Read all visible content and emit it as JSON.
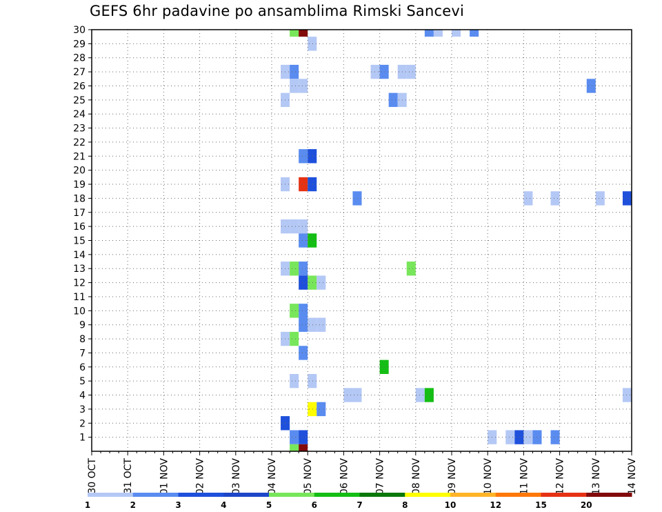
{
  "chart_data": {
    "type": "heatmap",
    "title": "GEFS 6hr padavine po ansamblima Rimski Sancevi",
    "xlabel": "",
    "ylabel": "",
    "x_tick_labels": [
      "30 OCT",
      "31 OCT",
      "01 NOV",
      "02 NOV",
      "03 NOV",
      "04 NOV",
      "05 NOV",
      "06 NOV",
      "07 NOV",
      "08 NOV",
      "09 NOV",
      "10 NOV",
      "11 NOV",
      "12 NOV",
      "13 NOV",
      "14 NOV"
    ],
    "y_tick_labels": [
      "1",
      "2",
      "3",
      "4",
      "5",
      "6",
      "7",
      "8",
      "9",
      "10",
      "11",
      "12",
      "13",
      "14",
      "15",
      "16",
      "17",
      "18",
      "19",
      "20",
      "21",
      "22",
      "23",
      "24",
      "25",
      "26",
      "27",
      "28",
      "29",
      "30"
    ],
    "x_unit": "6-hour steps from 30 OCT 00Z",
    "x_range": [
      0,
      60
    ],
    "y_range": [
      0,
      30
    ],
    "grid": true,
    "legend_placement": "bottom",
    "colorbar": {
      "labels": [
        "1",
        "2",
        "3",
        "4",
        "5",
        "6",
        "7",
        "8",
        "10",
        "12",
        "15",
        "20"
      ],
      "colors": [
        "#b4c8f5",
        "#5a8cf0",
        "#1e50dc",
        "#1e46c8",
        "#78e65a",
        "#14be14",
        "#0a780a",
        "#ffff00",
        "#ffb428",
        "#ff780a",
        "#e63214",
        "#820a0a"
      ]
    },
    "cells": [
      {
        "member": 30,
        "step": 22,
        "value": 5.5
      },
      {
        "member": 30,
        "step": 23,
        "value": 25
      },
      {
        "member": 30,
        "step": 37,
        "value": 2.5
      },
      {
        "member": 30,
        "step": 38,
        "value": 1.5
      },
      {
        "member": 30,
        "step": 40,
        "value": 1.5
      },
      {
        "member": 30,
        "step": 42,
        "value": 2.5
      },
      {
        "member": 29,
        "step": 24,
        "value": 1.5
      },
      {
        "member": 27,
        "step": 21,
        "value": 1.5
      },
      {
        "member": 27,
        "step": 22,
        "value": 2.5
      },
      {
        "member": 27,
        "step": 31,
        "value": 1.5
      },
      {
        "member": 27,
        "step": 32,
        "value": 2.5
      },
      {
        "member": 27,
        "step": 34,
        "value": 1.5
      },
      {
        "member": 27,
        "step": 35,
        "value": 1.5
      },
      {
        "member": 26,
        "step": 22,
        "value": 1.5
      },
      {
        "member": 26,
        "step": 23,
        "value": 1.5
      },
      {
        "member": 26,
        "step": 55,
        "value": 2.5
      },
      {
        "member": 25,
        "step": 21,
        "value": 1.5
      },
      {
        "member": 25,
        "step": 33,
        "value": 2.5
      },
      {
        "member": 25,
        "step": 34,
        "value": 1.5
      },
      {
        "member": 21,
        "step": 23,
        "value": 2.5
      },
      {
        "member": 21,
        "step": 24,
        "value": 3.5
      },
      {
        "member": 19,
        "step": 21,
        "value": 1.5
      },
      {
        "member": 19,
        "step": 23,
        "value": 15
      },
      {
        "member": 19,
        "step": 24,
        "value": 3.5
      },
      {
        "member": 18,
        "step": 29,
        "value": 2.5
      },
      {
        "member": 18,
        "step": 48,
        "value": 1.5
      },
      {
        "member": 18,
        "step": 51,
        "value": 1.5
      },
      {
        "member": 18,
        "step": 56,
        "value": 1.5
      },
      {
        "member": 18,
        "step": 59,
        "value": 3.5
      },
      {
        "member": 16,
        "step": 21,
        "value": 1.5
      },
      {
        "member": 16,
        "step": 22,
        "value": 1.5
      },
      {
        "member": 16,
        "step": 23,
        "value": 1.5
      },
      {
        "member": 15,
        "step": 23,
        "value": 2.5
      },
      {
        "member": 15,
        "step": 24,
        "value": 6.5
      },
      {
        "member": 13,
        "step": 21,
        "value": 1.5
      },
      {
        "member": 13,
        "step": 22,
        "value": 5.5
      },
      {
        "member": 13,
        "step": 23,
        "value": 2.5
      },
      {
        "member": 13,
        "step": 35,
        "value": 5.5
      },
      {
        "member": 12,
        "step": 23,
        "value": 3.5
      },
      {
        "member": 12,
        "step": 24,
        "value": 5.5
      },
      {
        "member": 12,
        "step": 25,
        "value": 1.5
      },
      {
        "member": 10,
        "step": 22,
        "value": 5.5
      },
      {
        "member": 10,
        "step": 23,
        "value": 2.5
      },
      {
        "member": 9,
        "step": 23,
        "value": 2.5
      },
      {
        "member": 9,
        "step": 24,
        "value": 1.5
      },
      {
        "member": 9,
        "step": 25,
        "value": 1.5
      },
      {
        "member": 8,
        "step": 21,
        "value": 1.5
      },
      {
        "member": 8,
        "step": 22,
        "value": 5.5
      },
      {
        "member": 7,
        "step": 23,
        "value": 2.5
      },
      {
        "member": 6,
        "step": 32,
        "value": 6.5
      },
      {
        "member": 5,
        "step": 22,
        "value": 1.5
      },
      {
        "member": 5,
        "step": 24,
        "value": 1.5
      },
      {
        "member": 4,
        "step": 28,
        "value": 1.5
      },
      {
        "member": 4,
        "step": 29,
        "value": 1.5
      },
      {
        "member": 4,
        "step": 36,
        "value": 1.5
      },
      {
        "member": 4,
        "step": 37,
        "value": 6.5
      },
      {
        "member": 4,
        "step": 59,
        "value": 1.5
      },
      {
        "member": 3,
        "step": 24,
        "value": 9
      },
      {
        "member": 3,
        "step": 25,
        "value": 2.5
      },
      {
        "member": 2,
        "step": 21,
        "value": 3.5
      },
      {
        "member": 1,
        "step": 22,
        "value": 2.5
      },
      {
        "member": 1,
        "step": 23,
        "value": 3.5
      },
      {
        "member": 1,
        "step": 44,
        "value": 1.5
      },
      {
        "member": 1,
        "step": 46,
        "value": 1.5
      },
      {
        "member": 1,
        "step": 47,
        "value": 3.5
      },
      {
        "member": 1,
        "step": 48,
        "value": 1.5
      },
      {
        "member": 1,
        "step": 49,
        "value": 2.5
      },
      {
        "member": 1,
        "step": 51,
        "value": 2.5
      },
      {
        "member": 0,
        "step": 22,
        "value": 5.5
      },
      {
        "member": 0,
        "step": 23,
        "value": 25
      }
    ]
  }
}
